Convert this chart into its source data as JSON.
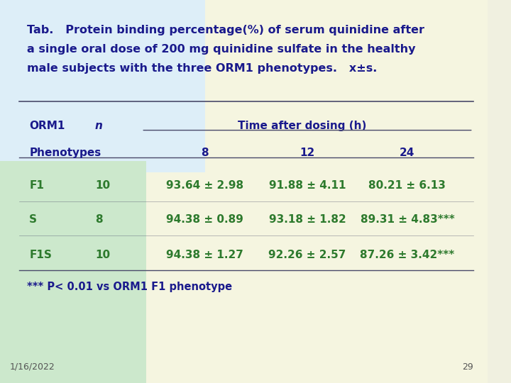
{
  "title_line1": "Tab.   Protein binding percentage(%) of serum quinidine after",
  "title_line2": "a single oral dose of 200 mg quinidine sulfate in the healthy",
  "title_line3": "male subjects with the three ORM1 phenotypes.   x±s.",
  "header1_col1": "ORM1",
  "header1_col2": "n",
  "header1_col3": "Time after dosing (h)",
  "header2_col1": "Phenotypes",
  "header2_col3a": "8",
  "header2_col3b": "12",
  "header2_col3c": "24",
  "rows": [
    [
      "F1",
      "10",
      "93.64 ± 2.98",
      "91.88 ± 4.11",
      "80.21 ± 6.13"
    ],
    [
      "S",
      "8",
      "94.38 ± 0.89",
      "93.18 ± 1.82",
      "89.31 ± 4.83***"
    ],
    [
      "F1S",
      "10",
      "94.38 ± 1.27",
      "92.26 ± 2.57",
      "87.26 ± 3.42***"
    ]
  ],
  "footnote": "*** P< 0.01 vs ORM1 F1 phenotype",
  "date": "1/16/2022",
  "page": "29",
  "bg_color_top": "#e8f4f8",
  "bg_color_left": "#d4ecd4",
  "bg_color_main": "#f5f5e8",
  "text_color_title": "#1a1a8c",
  "text_color_table": "#2d7a2d",
  "text_color_dark": "#1a1a8c",
  "line_color": "#4a4a6a"
}
